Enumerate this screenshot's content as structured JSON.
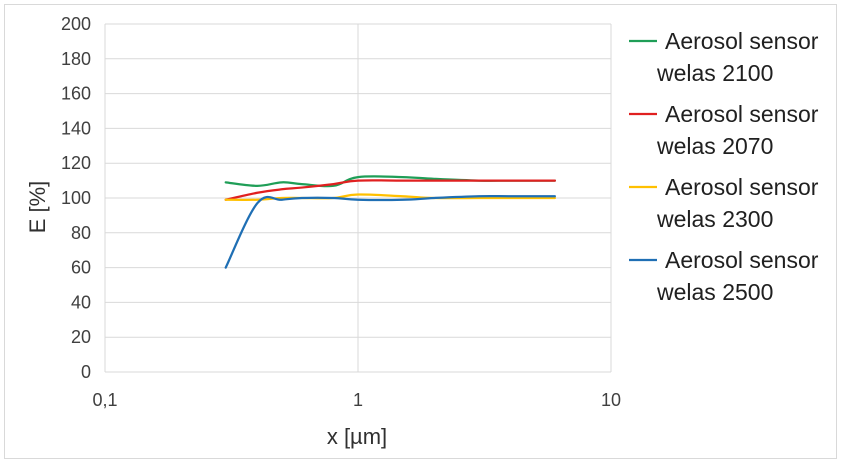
{
  "chart_data": {
    "type": "line",
    "title": "",
    "xlabel": "x [µm]",
    "ylabel": "E [%]",
    "x_scale": "log",
    "xlim": [
      0.1,
      10
    ],
    "ylim": [
      0,
      200
    ],
    "x_ticks": [
      0.1,
      1,
      10
    ],
    "x_tick_labels": [
      "0,1",
      "1",
      "10"
    ],
    "y_ticks": [
      0,
      20,
      40,
      60,
      80,
      100,
      120,
      140,
      160,
      180,
      200
    ],
    "y_tick_labels": [
      "0",
      "20",
      "40",
      "60",
      "80",
      "100",
      "120",
      "140",
      "160",
      "180",
      "200"
    ],
    "grid": true,
    "legend_position": "right",
    "series": [
      {
        "name": "Aerosol sensor welas 2100",
        "color": "#1f9e57",
        "x": [
          0.3,
          0.4,
          0.5,
          0.6,
          0.8,
          1.0,
          1.5,
          2.0,
          3.0,
          4.0,
          6.0
        ],
        "y": [
          109,
          107,
          109,
          108,
          107,
          112,
          112,
          111,
          110,
          110,
          110
        ]
      },
      {
        "name": "Aerosol sensor welas 2070",
        "color": "#e02020",
        "x": [
          0.3,
          0.4,
          0.5,
          0.6,
          0.8,
          1.0,
          1.5,
          2.0,
          3.0,
          4.0,
          6.0
        ],
        "y": [
          99,
          103,
          105,
          106,
          108,
          110,
          110,
          110,
          110,
          110,
          110
        ]
      },
      {
        "name": "Aerosol sensor welas 2300",
        "color": "#ffc000",
        "x": [
          0.3,
          0.4,
          0.5,
          0.6,
          0.8,
          1.0,
          1.5,
          2.0,
          3.0,
          4.0,
          6.0
        ],
        "y": [
          99,
          99,
          100,
          100,
          100,
          102,
          101,
          100,
          100,
          100,
          100
        ]
      },
      {
        "name": "Aerosol sensor welas 2500",
        "color": "#1f6fb4",
        "x": [
          0.3,
          0.4,
          0.5,
          0.6,
          0.8,
          1.0,
          1.5,
          2.0,
          3.0,
          4.0,
          6.0
        ],
        "y": [
          60,
          97,
          99,
          100,
          100,
          99,
          99,
          100,
          101,
          101,
          101
        ]
      }
    ]
  }
}
